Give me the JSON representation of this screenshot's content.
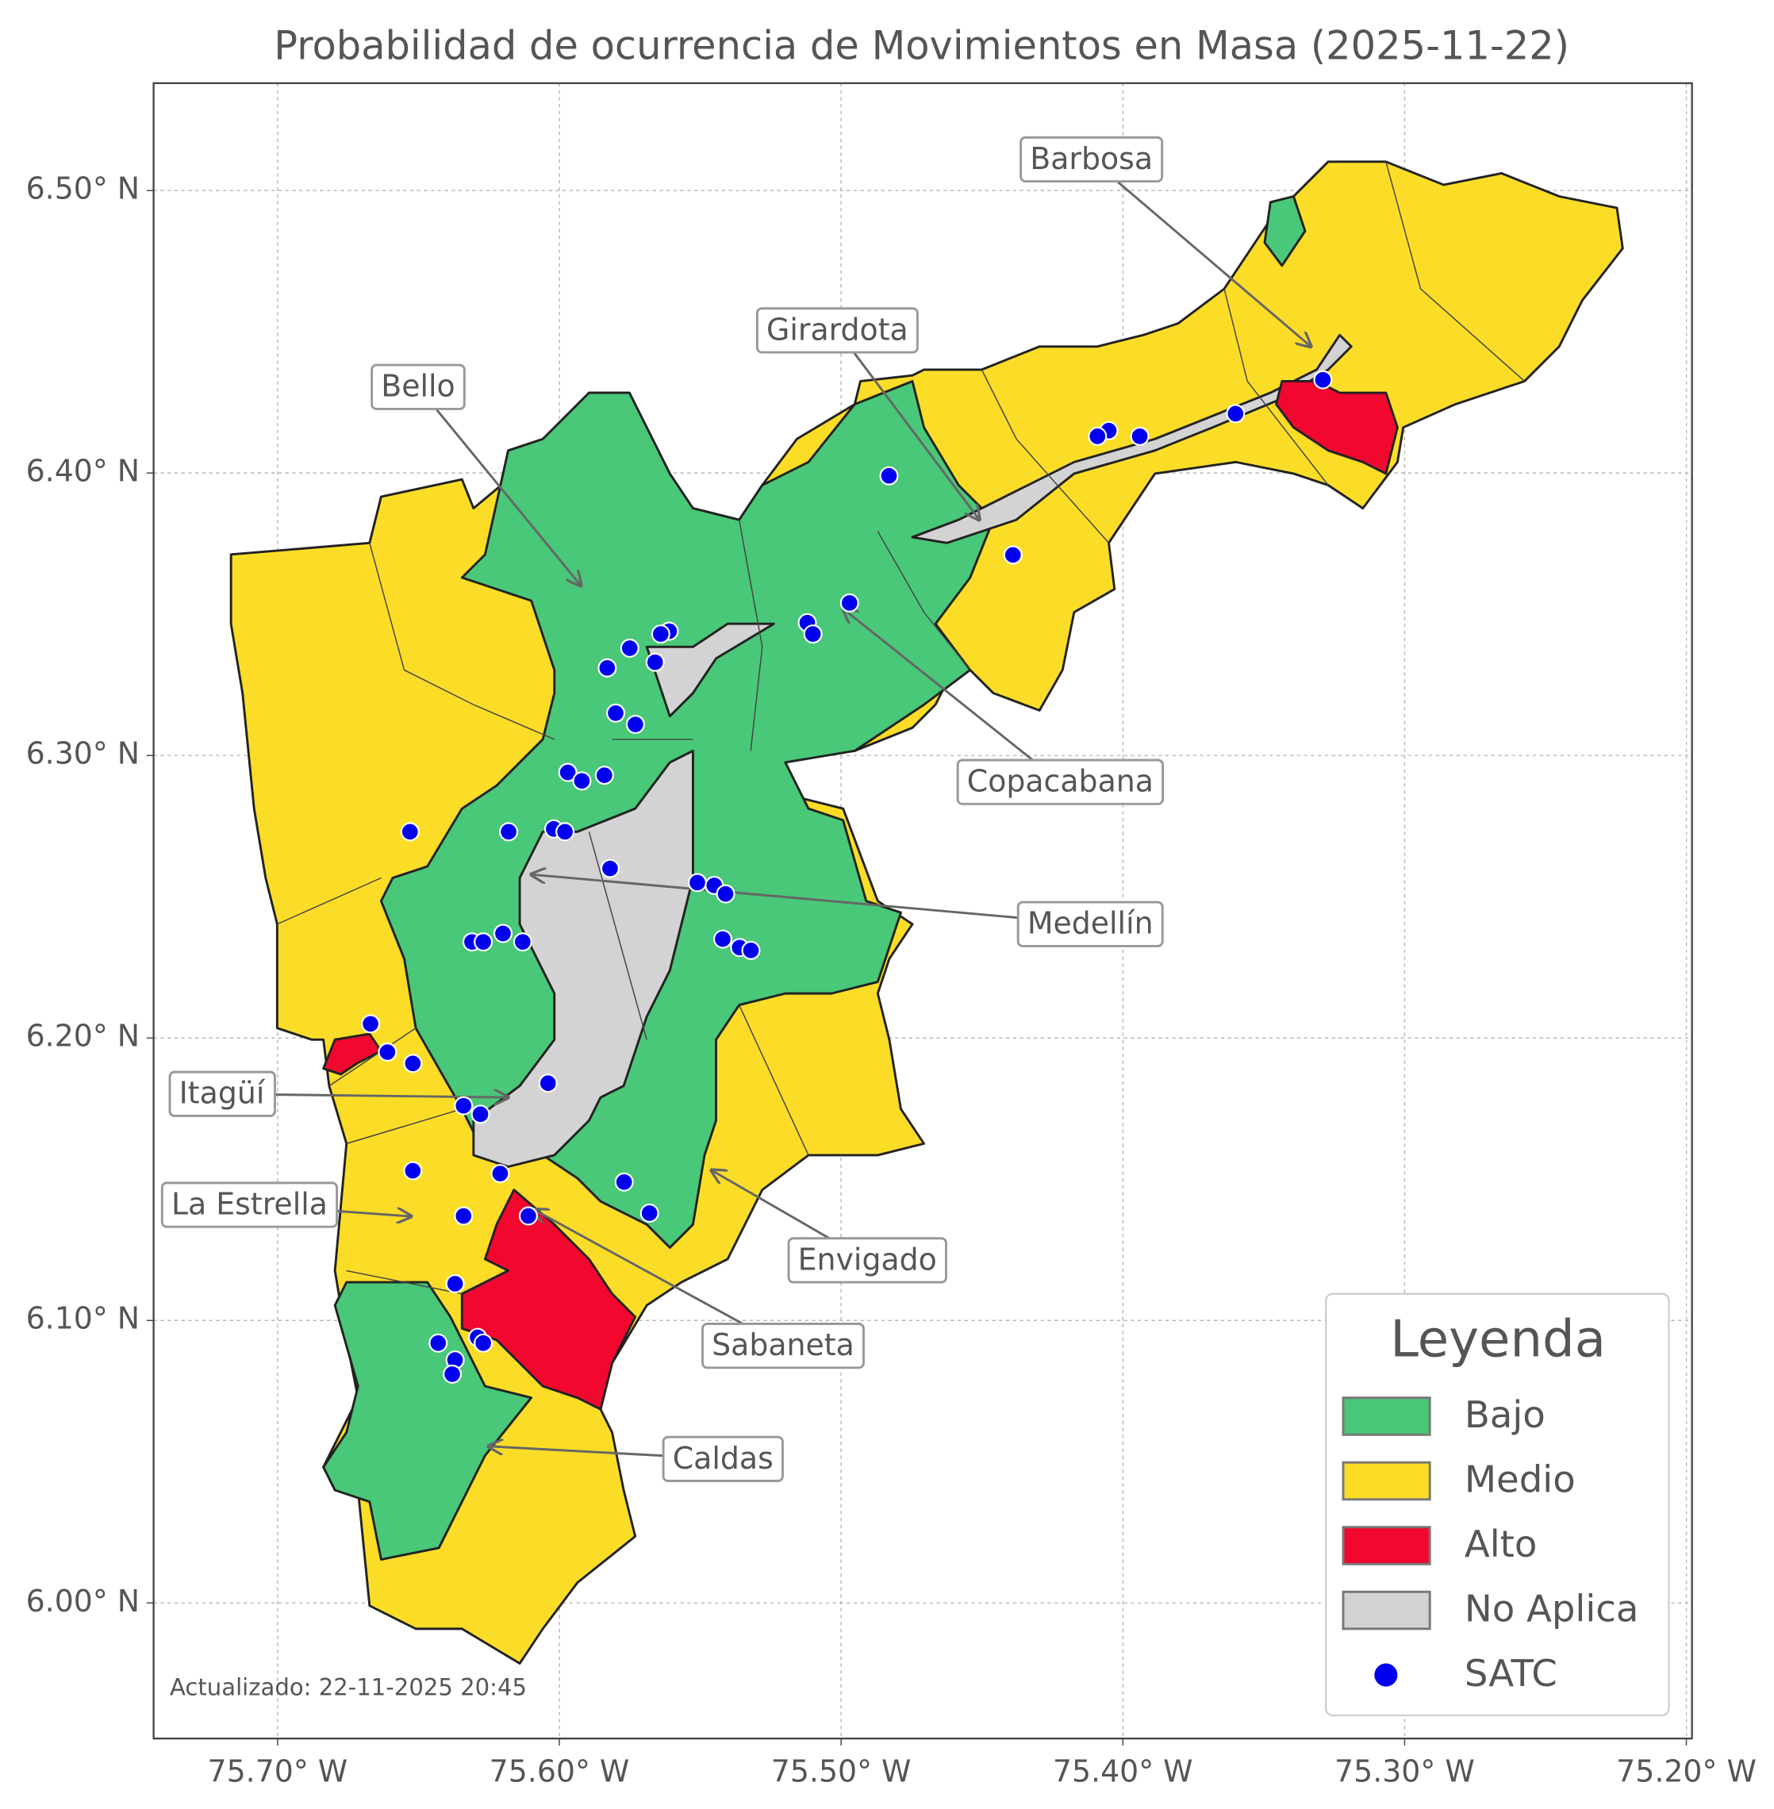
{
  "title": "Probabilidad de ocurrencia de Movimientos en Masa (2025-11-22)",
  "axes": {
    "xlim": [
      -75.744,
      -75.198
    ],
    "ylim": [
      5.952,
      6.538
    ],
    "xticks": [
      {
        "value": -75.7,
        "label": "75.70° W"
      },
      {
        "value": -75.6,
        "label": "75.60° W"
      },
      {
        "value": -75.5,
        "label": "75.50° W"
      },
      {
        "value": -75.4,
        "label": "75.40° W"
      },
      {
        "value": -75.3,
        "label": "75.30° W"
      },
      {
        "value": -75.2,
        "label": "75.20° W"
      }
    ],
    "yticks": [
      {
        "value": 6.0,
        "label": "6.00° N"
      },
      {
        "value": 6.1,
        "label": "6.10° N"
      },
      {
        "value": 6.2,
        "label": "6.20° N"
      },
      {
        "value": 6.3,
        "label": "6.30° N"
      },
      {
        "value": 6.4,
        "label": "6.40° N"
      },
      {
        "value": 6.5,
        "label": "6.50° N"
      }
    ],
    "grid": true
  },
  "annotations": [
    "Barbosa",
    "Girardota",
    "Bello",
    "Copacabana",
    "Medellín",
    "Itagüí",
    "La Estrella",
    "Envigado",
    "Sabaneta",
    "Caldas"
  ],
  "satc_stations": [
    {
      "lon": -75.329,
      "lat": 6.433
    },
    {
      "lon": -75.36,
      "lat": 6.421
    },
    {
      "lon": -75.394,
      "lat": 6.413
    },
    {
      "lon": -75.405,
      "lat": 6.415
    },
    {
      "lon": -75.409,
      "lat": 6.413
    },
    {
      "lon": -75.483,
      "lat": 6.399
    },
    {
      "lon": -75.439,
      "lat": 6.371
    },
    {
      "lon": -75.497,
      "lat": 6.354
    },
    {
      "lon": -75.512,
      "lat": 6.347
    },
    {
      "lon": -75.51,
      "lat": 6.343
    },
    {
      "lon": -75.561,
      "lat": 6.344
    },
    {
      "lon": -75.564,
      "lat": 6.343
    },
    {
      "lon": -75.575,
      "lat": 6.338
    },
    {
      "lon": -75.566,
      "lat": 6.333
    },
    {
      "lon": -75.583,
      "lat": 6.331
    },
    {
      "lon": -75.58,
      "lat": 6.315
    },
    {
      "lon": -75.573,
      "lat": 6.311
    },
    {
      "lon": -75.597,
      "lat": 6.294
    },
    {
      "lon": -75.592,
      "lat": 6.291
    },
    {
      "lon": -75.584,
      "lat": 6.293
    },
    {
      "lon": -75.602,
      "lat": 6.274
    },
    {
      "lon": -75.598,
      "lat": 6.273
    },
    {
      "lon": -75.618,
      "lat": 6.273
    },
    {
      "lon": -75.653,
      "lat": 6.273
    },
    {
      "lon": -75.582,
      "lat": 6.26
    },
    {
      "lon": -75.551,
      "lat": 6.255
    },
    {
      "lon": -75.545,
      "lat": 6.254
    },
    {
      "lon": -75.541,
      "lat": 6.251
    },
    {
      "lon": -75.542,
      "lat": 6.235
    },
    {
      "lon": -75.536,
      "lat": 6.232
    },
    {
      "lon": -75.532,
      "lat": 6.231
    },
    {
      "lon": -75.62,
      "lat": 6.237
    },
    {
      "lon": -75.613,
      "lat": 6.234
    },
    {
      "lon": -75.631,
      "lat": 6.234
    },
    {
      "lon": -75.627,
      "lat": 6.234
    },
    {
      "lon": -75.667,
      "lat": 6.205
    },
    {
      "lon": -75.661,
      "lat": 6.195
    },
    {
      "lon": -75.652,
      "lat": 6.191
    },
    {
      "lon": -75.604,
      "lat": 6.184
    },
    {
      "lon": -75.634,
      "lat": 6.176
    },
    {
      "lon": -75.628,
      "lat": 6.173
    },
    {
      "lon": -75.652,
      "lat": 6.153
    },
    {
      "lon": -75.621,
      "lat": 6.152
    },
    {
      "lon": -75.577,
      "lat": 6.149
    },
    {
      "lon": -75.568,
      "lat": 6.138
    },
    {
      "lon": -75.634,
      "lat": 6.137
    },
    {
      "lon": -75.611,
      "lat": 6.137
    },
    {
      "lon": -75.637,
      "lat": 6.113
    },
    {
      "lon": -75.643,
      "lat": 6.092
    },
    {
      "lon": -75.629,
      "lat": 6.094
    },
    {
      "lon": -75.627,
      "lat": 6.092
    },
    {
      "lon": -75.637,
      "lat": 6.086
    },
    {
      "lon": -75.638,
      "lat": 6.081
    }
  ],
  "legend": {
    "title": "Leyenda",
    "items": [
      {
        "name": "Bajo",
        "color": "#48c878"
      },
      {
        "name": "Medio",
        "color": "#fbdd27"
      },
      {
        "name": "Alto",
        "color": "#f2072e"
      },
      {
        "name": "No Aplica",
        "color": "#d3d3d3"
      },
      {
        "name": "SATC",
        "color": "#0000ee"
      }
    ]
  },
  "footer": "Actualizado: 22-11-2025 20:45"
}
